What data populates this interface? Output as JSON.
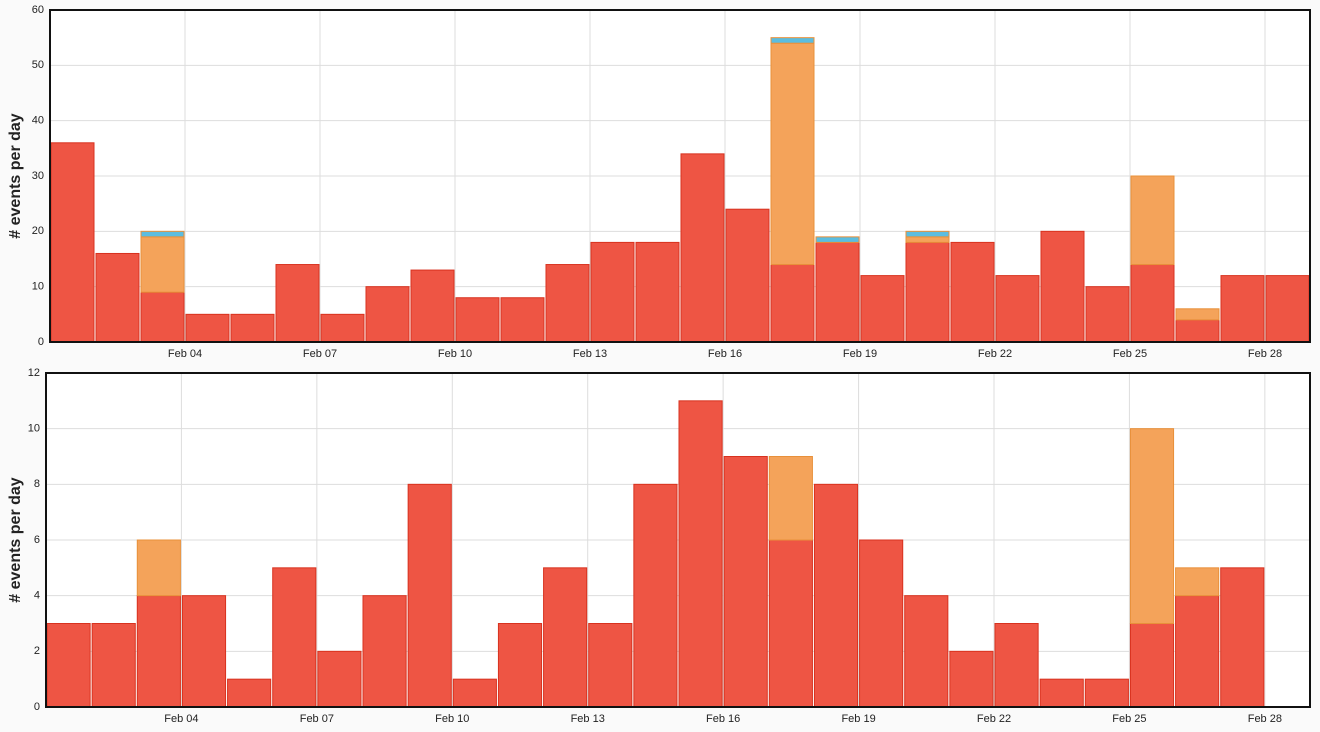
{
  "chart_data": [
    {
      "type": "bar",
      "stacked": true,
      "ylabel": "# events per day",
      "categories": [
        null,
        null,
        null,
        "Feb 04",
        null,
        null,
        "Feb 07",
        null,
        null,
        "Feb 10",
        null,
        null,
        "Feb 13",
        null,
        null,
        "Feb 16",
        null,
        null,
        "Feb 19",
        null,
        null,
        "Feb 22",
        null,
        null,
        "Feb 25",
        null,
        null,
        "Feb 28"
      ],
      "series": [
        {
          "color": "#ee5544",
          "values": [
            36,
            16,
            9,
            5,
            5,
            14,
            5,
            10,
            13,
            8,
            8,
            14,
            18,
            18,
            34,
            24,
            14,
            18,
            12,
            18,
            18,
            12,
            20,
            10,
            14,
            4,
            12,
            12
          ]
        },
        {
          "color": "#f4a35a",
          "values": [
            0,
            0,
            10,
            0,
            0,
            0,
            0,
            0,
            0,
            0,
            0,
            0,
            0,
            0,
            0,
            0,
            40,
            0,
            0,
            1,
            0,
            0,
            0,
            0,
            16,
            2,
            0,
            0
          ]
        },
        {
          "color": "#5bbde0",
          "values": [
            0,
            0,
            1,
            0,
            0,
            0,
            0,
            0,
            0,
            0,
            0,
            0,
            0,
            0,
            0,
            0,
            1,
            1,
            0,
            1,
            0,
            0,
            0,
            0,
            0,
            0,
            0,
            0
          ]
        }
      ],
      "ylim": [
        0,
        60
      ],
      "yticks": [
        0,
        10,
        20,
        30,
        40,
        50,
        60
      ],
      "grid": true
    },
    {
      "type": "bar",
      "stacked": true,
      "ylabel": "# events per day",
      "categories": [
        null,
        null,
        null,
        "Feb 04",
        null,
        null,
        "Feb 07",
        null,
        null,
        "Feb 10",
        null,
        null,
        "Feb 13",
        null,
        null,
        "Feb 16",
        null,
        null,
        "Feb 19",
        null,
        null,
        "Feb 22",
        null,
        null,
        "Feb 25",
        null,
        null,
        "Feb 28"
      ],
      "series": [
        {
          "color": "#ee5544",
          "values": [
            3,
            3,
            4,
            4,
            1,
            5,
            2,
            4,
            8,
            1,
            3,
            5,
            3,
            8,
            11,
            9,
            6,
            8,
            6,
            4,
            2,
            3,
            1,
            1,
            3,
            4,
            5,
            0
          ]
        },
        {
          "color": "#f4a35a",
          "values": [
            0,
            0,
            2,
            0,
            0,
            0,
            0,
            0,
            0,
            0,
            0,
            0,
            0,
            0,
            0,
            0,
            3,
            0,
            0,
            0,
            0,
            0,
            0,
            0,
            7,
            1,
            0,
            0
          ]
        }
      ],
      "ylim": [
        0,
        12
      ],
      "yticks": [
        0,
        2,
        4,
        6,
        8,
        10,
        12
      ],
      "grid": true
    }
  ]
}
